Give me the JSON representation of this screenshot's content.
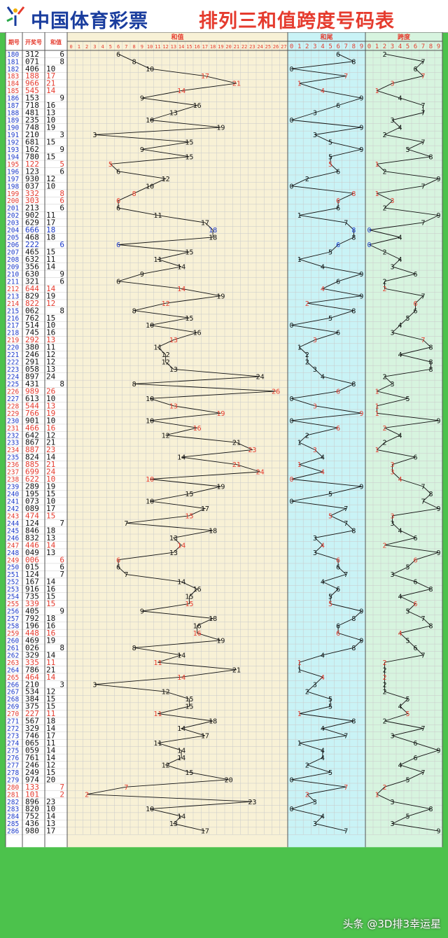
{
  "header": {
    "brand": "中国体育彩票",
    "title": "排列三和值跨度号码表"
  },
  "watermark": "头条 @3D排3幸运星",
  "columns": {
    "issue": "期号",
    "draw": "开奖号",
    "sum": "和值",
    "sum_chart": "和值",
    "tail_chart": "和尾",
    "span_chart": "跨度"
  },
  "colors": {
    "highlight": "#e53b2e",
    "blue": "#1b39c9",
    "normal": "#111111",
    "sum_bg": "#f8f1d6",
    "tail_bg": "#c9f3f6",
    "span_bg": "#d7f4df"
  },
  "chart_data": {
    "type": "table",
    "sum_axis": [
      "0",
      "1",
      "2",
      "3",
      "4",
      "5",
      "6",
      "7",
      "8",
      "9",
      "10",
      "11",
      "12",
      "13",
      "14",
      "15",
      "16",
      "17",
      "18",
      "19",
      "20",
      "21",
      "22",
      "23",
      "24",
      "25",
      "26",
      "27"
    ],
    "tail_axis": [
      "0",
      "1",
      "2",
      "3",
      "4",
      "5",
      "6",
      "7",
      "8",
      "9"
    ],
    "span_axis": [
      "0",
      "1",
      "2",
      "3",
      "4",
      "5",
      "6",
      "7",
      "8",
      "9"
    ],
    "rows": [
      {
        "issue": "180",
        "draw": "312",
        "sum": 6,
        "tail": 6,
        "span": 2,
        "color": "normal"
      },
      {
        "issue": "181",
        "draw": "071",
        "sum": 8,
        "tail": 8,
        "span": 7,
        "color": "normal"
      },
      {
        "issue": "182",
        "draw": "406",
        "sum": 10,
        "tail": 0,
        "span": 6,
        "color": "normal"
      },
      {
        "issue": "183",
        "draw": "188",
        "sum": 17,
        "tail": 7,
        "span": 7,
        "color": "red"
      },
      {
        "issue": "184",
        "draw": "966",
        "sum": 21,
        "tail": 1,
        "span": 3,
        "color": "red"
      },
      {
        "issue": "185",
        "draw": "545",
        "sum": 14,
        "tail": 4,
        "span": 1,
        "color": "red"
      },
      {
        "issue": "186",
        "draw": "153",
        "sum": 9,
        "tail": 9,
        "span": 4,
        "color": "normal"
      },
      {
        "issue": "187",
        "draw": "718",
        "sum": 16,
        "tail": 6,
        "span": 7,
        "color": "normal"
      },
      {
        "issue": "188",
        "draw": "481",
        "sum": 13,
        "tail": 3,
        "span": 7,
        "color": "normal"
      },
      {
        "issue": "189",
        "draw": "235",
        "sum": 10,
        "tail": 0,
        "span": 3,
        "color": "normal"
      },
      {
        "issue": "190",
        "draw": "748",
        "sum": 19,
        "tail": 9,
        "span": 4,
        "color": "normal"
      },
      {
        "issue": "191",
        "draw": "210",
        "sum": 3,
        "tail": 3,
        "span": 2,
        "color": "normal"
      },
      {
        "issue": "192",
        "draw": "681",
        "sum": 15,
        "tail": 5,
        "span": 7,
        "color": "normal"
      },
      {
        "issue": "193",
        "draw": "162",
        "sum": 9,
        "tail": 9,
        "span": 5,
        "color": "normal"
      },
      {
        "issue": "194",
        "draw": "780",
        "sum": 15,
        "tail": 5,
        "span": 8,
        "color": "normal"
      },
      {
        "issue": "195",
        "draw": "122",
        "sum": 5,
        "tail": 5,
        "span": 1,
        "color": "red"
      },
      {
        "issue": "196",
        "draw": "123",
        "sum": 6,
        "tail": 6,
        "span": 2,
        "color": "normal"
      },
      {
        "issue": "197",
        "draw": "930",
        "sum": 12,
        "tail": 2,
        "span": 9,
        "color": "normal"
      },
      {
        "issue": "198",
        "draw": "037",
        "sum": 10,
        "tail": 0,
        "span": 7,
        "color": "normal"
      },
      {
        "issue": "199",
        "draw": "332",
        "sum": 8,
        "tail": 8,
        "span": 1,
        "color": "red"
      },
      {
        "issue": "200",
        "draw": "303",
        "sum": 6,
        "tail": 6,
        "span": 3,
        "color": "red"
      },
      {
        "issue": "201",
        "draw": "213",
        "sum": 6,
        "tail": 6,
        "span": 2,
        "color": "normal"
      },
      {
        "issue": "202",
        "draw": "902",
        "sum": 11,
        "tail": 1,
        "span": 9,
        "color": "normal"
      },
      {
        "issue": "203",
        "draw": "629",
        "sum": 17,
        "tail": 7,
        "span": 7,
        "color": "normal"
      },
      {
        "issue": "204",
        "draw": "666",
        "sum": 18,
        "tail": 8,
        "span": 0,
        "color": "blue"
      },
      {
        "issue": "205",
        "draw": "468",
        "sum": 18,
        "tail": 8,
        "span": 4,
        "color": "normal"
      },
      {
        "issue": "206",
        "draw": "222",
        "sum": 6,
        "tail": 6,
        "span": 0,
        "color": "blue"
      },
      {
        "issue": "207",
        "draw": "465",
        "sum": 15,
        "tail": 5,
        "span": 2,
        "color": "normal"
      },
      {
        "issue": "208",
        "draw": "632",
        "sum": 11,
        "tail": 1,
        "span": 4,
        "color": "normal"
      },
      {
        "issue": "209",
        "draw": "356",
        "sum": 14,
        "tail": 4,
        "span": 3,
        "color": "normal"
      },
      {
        "issue": "210",
        "draw": "630",
        "sum": 9,
        "tail": 9,
        "span": 6,
        "color": "normal"
      },
      {
        "issue": "211",
        "draw": "321",
        "sum": 6,
        "tail": 6,
        "span": 2,
        "color": "normal"
      },
      {
        "issue": "212",
        "draw": "644",
        "sum": 14,
        "tail": 4,
        "span": 2,
        "color": "red"
      },
      {
        "issue": "213",
        "draw": "829",
        "sum": 19,
        "tail": 9,
        "span": 7,
        "color": "normal"
      },
      {
        "issue": "214",
        "draw": "822",
        "sum": 12,
        "tail": 2,
        "span": 6,
        "color": "red"
      },
      {
        "issue": "215",
        "draw": "062",
        "sum": 8,
        "tail": 8,
        "span": 6,
        "color": "normal"
      },
      {
        "issue": "216",
        "draw": "762",
        "sum": 15,
        "tail": 5,
        "span": 5,
        "color": "normal"
      },
      {
        "issue": "217",
        "draw": "514",
        "sum": 10,
        "tail": 0,
        "span": 4,
        "color": "normal"
      },
      {
        "issue": "218",
        "draw": "745",
        "sum": 16,
        "tail": 6,
        "span": 3,
        "color": "normal"
      },
      {
        "issue": "219",
        "draw": "292",
        "sum": 13,
        "tail": 3,
        "span": 7,
        "color": "red"
      },
      {
        "issue": "220",
        "draw": "380",
        "sum": 11,
        "tail": 1,
        "span": 8,
        "color": "normal"
      },
      {
        "issue": "221",
        "draw": "246",
        "sum": 12,
        "tail": 2,
        "span": 4,
        "color": "normal"
      },
      {
        "issue": "222",
        "draw": "291",
        "sum": 12,
        "tail": 2,
        "span": 8,
        "color": "normal"
      },
      {
        "issue": "223",
        "draw": "058",
        "sum": 13,
        "tail": 3,
        "span": 8,
        "color": "normal"
      },
      {
        "issue": "224",
        "draw": "897",
        "sum": 24,
        "tail": 4,
        "span": 2,
        "color": "normal"
      },
      {
        "issue": "225",
        "draw": "431",
        "sum": 8,
        "tail": 8,
        "span": 3,
        "color": "normal"
      },
      {
        "issue": "226",
        "draw": "989",
        "sum": 26,
        "tail": 6,
        "span": 1,
        "color": "red"
      },
      {
        "issue": "227",
        "draw": "613",
        "sum": 10,
        "tail": 0,
        "span": 5,
        "color": "normal"
      },
      {
        "issue": "228",
        "draw": "544",
        "sum": 13,
        "tail": 3,
        "span": 1,
        "color": "red"
      },
      {
        "issue": "229",
        "draw": "766",
        "sum": 19,
        "tail": 9,
        "span": 1,
        "color": "red"
      },
      {
        "issue": "230",
        "draw": "901",
        "sum": 10,
        "tail": 0,
        "span": 9,
        "color": "normal"
      },
      {
        "issue": "231",
        "draw": "466",
        "sum": 16,
        "tail": 6,
        "span": 2,
        "color": "red"
      },
      {
        "issue": "232",
        "draw": "642",
        "sum": 12,
        "tail": 2,
        "span": 4,
        "color": "normal"
      },
      {
        "issue": "233",
        "draw": "867",
        "sum": 21,
        "tail": 1,
        "span": 2,
        "color": "normal"
      },
      {
        "issue": "234",
        "draw": "887",
        "sum": 23,
        "tail": 3,
        "span": 1,
        "color": "red"
      },
      {
        "issue": "235",
        "draw": "824",
        "sum": 14,
        "tail": 4,
        "span": 6,
        "color": "normal"
      },
      {
        "issue": "236",
        "draw": "885",
        "sum": 21,
        "tail": 1,
        "span": 3,
        "color": "red"
      },
      {
        "issue": "237",
        "draw": "699",
        "sum": 24,
        "tail": 4,
        "span": 3,
        "color": "red"
      },
      {
        "issue": "238",
        "draw": "622",
        "sum": 10,
        "tail": 0,
        "span": 4,
        "color": "red"
      },
      {
        "issue": "239",
        "draw": "289",
        "sum": 19,
        "tail": 9,
        "span": 7,
        "color": "normal"
      },
      {
        "issue": "240",
        "draw": "195",
        "sum": 15,
        "tail": 5,
        "span": 8,
        "color": "normal"
      },
      {
        "issue": "241",
        "draw": "073",
        "sum": 10,
        "tail": 0,
        "span": 7,
        "color": "normal"
      },
      {
        "issue": "242",
        "draw": "089",
        "sum": 17,
        "tail": 7,
        "span": 9,
        "color": "normal"
      },
      {
        "issue": "243",
        "draw": "474",
        "sum": 15,
        "tail": 5,
        "span": 3,
        "color": "red"
      },
      {
        "issue": "244",
        "draw": "124",
        "sum": 7,
        "tail": 7,
        "span": 3,
        "color": "normal"
      },
      {
        "issue": "245",
        "draw": "846",
        "sum": 18,
        "tail": 8,
        "span": 4,
        "color": "normal"
      },
      {
        "issue": "246",
        "draw": "832",
        "sum": 13,
        "tail": 3,
        "span": 6,
        "color": "normal"
      },
      {
        "issue": "247",
        "draw": "446",
        "sum": 14,
        "tail": 4,
        "span": 2,
        "color": "red"
      },
      {
        "issue": "248",
        "draw": "049",
        "sum": 13,
        "tail": 3,
        "span": 9,
        "color": "normal"
      },
      {
        "issue": "249",
        "draw": "006",
        "sum": 6,
        "tail": 6,
        "span": 6,
        "color": "red"
      },
      {
        "issue": "250",
        "draw": "015",
        "sum": 6,
        "tail": 6,
        "span": 5,
        "color": "normal"
      },
      {
        "issue": "251",
        "draw": "124",
        "sum": 7,
        "tail": 7,
        "span": 3,
        "color": "normal"
      },
      {
        "issue": "252",
        "draw": "167",
        "sum": 14,
        "tail": 4,
        "span": 6,
        "color": "normal"
      },
      {
        "issue": "253",
        "draw": "916",
        "sum": 16,
        "tail": 6,
        "span": 8,
        "color": "normal"
      },
      {
        "issue": "254",
        "draw": "735",
        "sum": 15,
        "tail": 5,
        "span": 4,
        "color": "normal"
      },
      {
        "issue": "255",
        "draw": "339",
        "sum": 15,
        "tail": 5,
        "span": 6,
        "color": "red"
      },
      {
        "issue": "256",
        "draw": "405",
        "sum": 9,
        "tail": 9,
        "span": 5,
        "color": "normal"
      },
      {
        "issue": "257",
        "draw": "792",
        "sum": 18,
        "tail": 8,
        "span": 7,
        "color": "normal"
      },
      {
        "issue": "258",
        "draw": "196",
        "sum": 16,
        "tail": 6,
        "span": 8,
        "color": "normal"
      },
      {
        "issue": "259",
        "draw": "448",
        "sum": 16,
        "tail": 6,
        "span": 4,
        "color": "red"
      },
      {
        "issue": "260",
        "draw": "469",
        "sum": 19,
        "tail": 9,
        "span": 5,
        "color": "normal"
      },
      {
        "issue": "261",
        "draw": "026",
        "sum": 8,
        "tail": 8,
        "span": 6,
        "color": "normal"
      },
      {
        "issue": "262",
        "draw": "329",
        "sum": 14,
        "tail": 4,
        "span": 7,
        "color": "normal"
      },
      {
        "issue": "263",
        "draw": "335",
        "sum": 11,
        "tail": 1,
        "span": 2,
        "color": "red"
      },
      {
        "issue": "264",
        "draw": "786",
        "sum": 21,
        "tail": 1,
        "span": 2,
        "color": "normal"
      },
      {
        "issue": "265",
        "draw": "464",
        "sum": 14,
        "tail": 4,
        "span": 2,
        "color": "red"
      },
      {
        "issue": "266",
        "draw": "210",
        "sum": 3,
        "tail": 3,
        "span": 2,
        "color": "normal"
      },
      {
        "issue": "267",
        "draw": "534",
        "sum": 12,
        "tail": 2,
        "span": 2,
        "color": "normal"
      },
      {
        "issue": "268",
        "draw": "384",
        "sum": 15,
        "tail": 5,
        "span": 5,
        "color": "normal"
      },
      {
        "issue": "269",
        "draw": "375",
        "sum": 15,
        "tail": 5,
        "span": 4,
        "color": "normal"
      },
      {
        "issue": "270",
        "draw": "227",
        "sum": 11,
        "tail": 1,
        "span": 5,
        "color": "red"
      },
      {
        "issue": "271",
        "draw": "567",
        "sum": 18,
        "tail": 8,
        "span": 2,
        "color": "normal"
      },
      {
        "issue": "272",
        "draw": "329",
        "sum": 14,
        "tail": 4,
        "span": 7,
        "color": "normal"
      },
      {
        "issue": "273",
        "draw": "746",
        "sum": 17,
        "tail": 7,
        "span": 3,
        "color": "normal"
      },
      {
        "issue": "274",
        "draw": "065",
        "sum": 11,
        "tail": 1,
        "span": 6,
        "color": "normal"
      },
      {
        "issue": "275",
        "draw": "059",
        "sum": 14,
        "tail": 4,
        "span": 9,
        "color": "normal"
      },
      {
        "issue": "276",
        "draw": "761",
        "sum": 14,
        "tail": 4,
        "span": 6,
        "color": "normal"
      },
      {
        "issue": "277",
        "draw": "246",
        "sum": 12,
        "tail": 2,
        "span": 4,
        "color": "normal"
      },
      {
        "issue": "278",
        "draw": "249",
        "sum": 15,
        "tail": 5,
        "span": 7,
        "color": "normal"
      },
      {
        "issue": "279",
        "draw": "974",
        "sum": 20,
        "tail": 0,
        "span": 5,
        "color": "normal"
      },
      {
        "issue": "280",
        "draw": "133",
        "sum": 7,
        "tail": 7,
        "span": 2,
        "color": "red"
      },
      {
        "issue": "281",
        "draw": "101",
        "sum": 2,
        "tail": 2,
        "span": 1,
        "color": "red"
      },
      {
        "issue": "282",
        "draw": "896",
        "sum": 23,
        "tail": 3,
        "span": 3,
        "color": "normal"
      },
      {
        "issue": "283",
        "draw": "820",
        "sum": 10,
        "tail": 0,
        "span": 8,
        "color": "normal"
      },
      {
        "issue": "284",
        "draw": "752",
        "sum": 14,
        "tail": 4,
        "span": 5,
        "color": "normal"
      },
      {
        "issue": "285",
        "draw": "436",
        "sum": 13,
        "tail": 3,
        "span": 3,
        "color": "normal"
      },
      {
        "issue": "286",
        "draw": "980",
        "sum": 17,
        "tail": 7,
        "span": 9,
        "color": "normal"
      }
    ]
  }
}
